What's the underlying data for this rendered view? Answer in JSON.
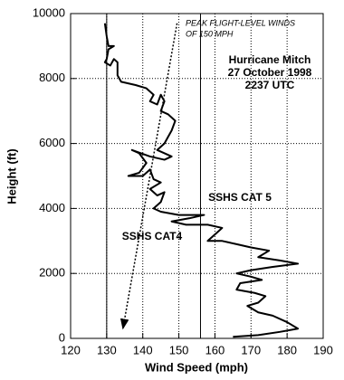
{
  "chart_data": {
    "type": "line",
    "xlabel": "Wind Speed (mph)",
    "ylabel": "Height (ft)",
    "xlim": [
      120,
      190
    ],
    "xticks": [
      120,
      130,
      140,
      150,
      160,
      170,
      180,
      190
    ],
    "ylim": [
      0,
      10000
    ],
    "yticks": [
      0,
      2000,
      4000,
      6000,
      8000,
      10000
    ],
    "grid": true,
    "reference_lines": [
      130,
      156
    ],
    "series": [
      {
        "color": "#000000",
        "x": [
          129.5,
          130,
          130.5,
          132,
          130.5,
          130,
          129.5,
          131,
          132,
          133,
          133,
          134,
          138,
          141,
          143,
          142,
          144,
          145,
          146,
          145,
          147,
          149,
          148,
          147,
          146,
          144,
          148,
          146,
          142,
          137,
          139,
          141,
          139,
          136,
          140,
          142,
          143,
          145,
          142,
          144,
          146,
          145,
          143,
          145,
          150,
          157,
          153,
          148,
          152,
          158,
          162,
          160,
          158,
          162,
          166,
          170,
          175,
          172,
          178,
          183,
          176,
          170,
          166,
          170,
          173,
          167,
          166,
          171,
          174,
          172,
          169,
          172,
          176,
          180,
          183,
          178,
          172,
          165
        ],
        "values": [
          9700,
          9300,
          9000,
          9000,
          8900,
          8600,
          8500,
          8400,
          8600,
          8500,
          8100,
          7900,
          7800,
          7700,
          7500,
          7300,
          7200,
          7500,
          7300,
          7000,
          6900,
          6700,
          6400,
          6200,
          6000,
          5800,
          5600,
          5500,
          5600,
          5800,
          5700,
          5400,
          5100,
          5000,
          5000,
          5200,
          4900,
          4800,
          4600,
          4400,
          4500,
          4200,
          4000,
          3900,
          3800,
          3800,
          3700,
          3600,
          3500,
          3500,
          3400,
          3200,
          3000,
          3000,
          2900,
          2800,
          2700,
          2500,
          2400,
          2300,
          2200,
          2100,
          2000,
          1900,
          1800,
          1700,
          1500,
          1400,
          1300,
          1100,
          1000,
          800,
          700,
          500,
          300,
          200,
          100,
          50
        ]
      }
    ],
    "arrow": {
      "x": [
        149.5,
        134.5
      ],
      "y": [
        9700,
        300
      ]
    },
    "annotations": [
      "PEAK FLIGHT-LEVEL WINDS",
      "OF 150 MPH",
      "Hurricane Mitch",
      "27 October 1998",
      "2237 UTC",
      "SSHS CAT 5",
      "SSHS CAT4"
    ]
  }
}
